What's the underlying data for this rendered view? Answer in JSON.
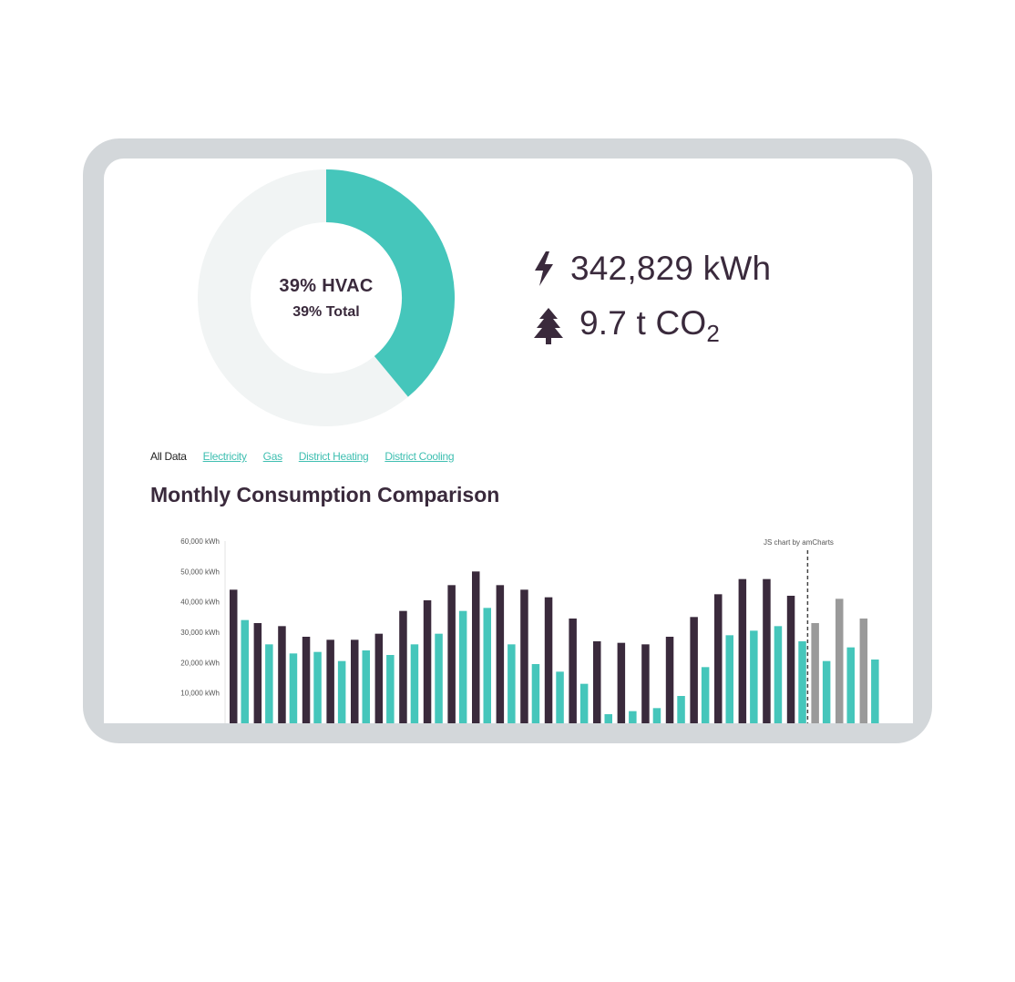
{
  "colors": {
    "teal": "#45c6bb",
    "donut_bg": "#f1f4f4",
    "plum": "#3a2a3c",
    "gray_bar": "#9a9a9a",
    "link": "#3fbfb1"
  },
  "donut": {
    "line1": "39% HVAC",
    "line2": "39% Total",
    "fraction": 0.39
  },
  "stats": {
    "energy": {
      "icon": "lightning-icon",
      "value": "342,829 kWh"
    },
    "co2": {
      "icon": "tree-icon",
      "value": "9.7 t CO",
      "subscript": "2"
    }
  },
  "filters": [
    {
      "label": "All Data",
      "active": true
    },
    {
      "label": "Electricity",
      "active": false
    },
    {
      "label": "Gas",
      "active": false
    },
    {
      "label": "District Heating",
      "active": false
    },
    {
      "label": "District Cooling",
      "active": false
    }
  ],
  "chart_title": "Monthly Consumption Comparison",
  "chart_data": {
    "type": "bar",
    "credit": "JS chart by amCharts",
    "y_ticks": [
      "60,000 kWh",
      "50,000 kWh",
      "40,000 kWh",
      "30,000 kWh",
      "20,000 kWh",
      "10,000 kWh"
    ],
    "ylim": [
      0,
      60000
    ],
    "series": [
      {
        "values": [
          44000,
          33000,
          32000,
          28500,
          27500,
          27500,
          29500,
          37000,
          40500,
          45500,
          50000,
          45500,
          44000,
          41500,
          34500,
          27000,
          26500,
          26000,
          28500,
          35000,
          42500,
          47500,
          47500,
          42000,
          33000,
          41000,
          34500
        ]
      },
      {
        "values": [
          34000,
          26000,
          23000,
          23500,
          20500,
          24000,
          22500,
          26000,
          29500,
          37000,
          38000,
          26000,
          19500,
          17000,
          13000,
          3000,
          4000,
          5000,
          9000,
          18500,
          29000,
          30500,
          32000,
          27000,
          20500,
          25000,
          21000
        ]
      }
    ],
    "forecast_start_index": 24,
    "grid": false
  }
}
